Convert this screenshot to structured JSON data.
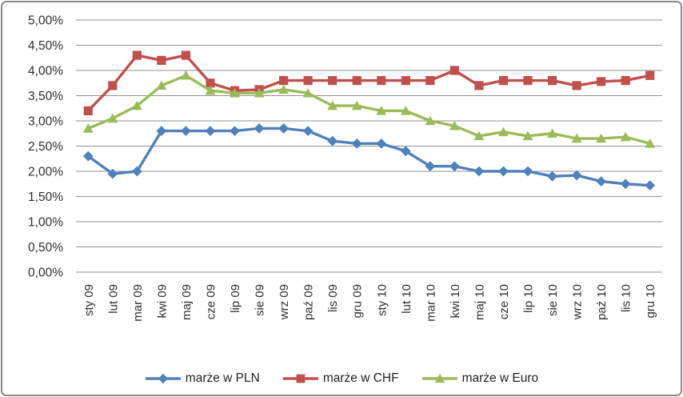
{
  "chart_data": {
    "type": "line",
    "title": "",
    "xlabel": "",
    "ylabel": "",
    "categories": [
      "sty 09",
      "lut 09",
      "mar 09",
      "kwi 09",
      "maj 09",
      "cze 09",
      "lip 09",
      "sie 09",
      "wrz 09",
      "paź 09",
      "lis 09",
      "gru 09",
      "sty 10",
      "lut 10",
      "mar 10",
      "kwi 10",
      "maj 10",
      "cze 10",
      "lip 10",
      "sie 10",
      "wrz 10",
      "paź 10",
      "lis 10",
      "gru 10"
    ],
    "series": [
      {
        "name": "marże w PLN",
        "marker": "diamond",
        "color": "#4F81BD",
        "values": [
          2.3,
          1.95,
          2.0,
          2.8,
          2.8,
          2.8,
          2.8,
          2.85,
          2.85,
          2.8,
          2.6,
          2.55,
          2.55,
          2.4,
          2.1,
          2.1,
          2.0,
          2.0,
          2.0,
          1.9,
          1.92,
          1.8,
          1.75,
          1.72
        ]
      },
      {
        "name": "marże w CHF",
        "marker": "square",
        "color": "#C0504D",
        "values": [
          3.2,
          3.7,
          4.3,
          4.2,
          4.3,
          3.75,
          3.6,
          3.62,
          3.8,
          3.8,
          3.8,
          3.8,
          3.8,
          3.8,
          3.8,
          4.0,
          3.7,
          3.8,
          3.8,
          3.8,
          3.7,
          3.78,
          3.8,
          3.9
        ]
      },
      {
        "name": "marże w Euro",
        "marker": "triangle",
        "color": "#9BBB59",
        "values": [
          2.85,
          3.05,
          3.3,
          3.7,
          3.9,
          3.6,
          3.55,
          3.55,
          3.62,
          3.55,
          3.3,
          3.3,
          3.2,
          3.2,
          3.0,
          2.9,
          2.7,
          2.78,
          2.7,
          2.75,
          2.65,
          2.65,
          2.68,
          2.55
        ]
      }
    ],
    "y_axis": {
      "min": 0,
      "max": 5,
      "step": 0.5,
      "tick_labels": [
        "0,00%",
        "0,50%",
        "1,00%",
        "1,50%",
        "2,00%",
        "2,50%",
        "3,00%",
        "3,50%",
        "4,00%",
        "4,50%",
        "5,00%"
      ]
    },
    "grid": true,
    "legend_position": "bottom"
  },
  "colors": {
    "gridline": "#929292",
    "axis_text": "#2e2e2e",
    "frame_border": "#8a8a8a",
    "background": "#ffffff"
  }
}
